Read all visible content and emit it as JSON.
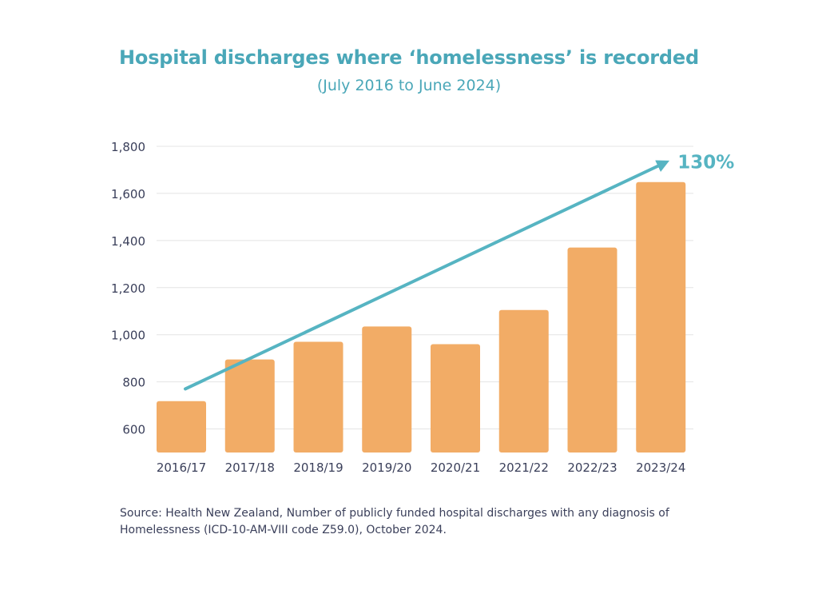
{
  "title": "Hospital discharges where ‘homelessness’ is recorded",
  "subtitle": "(July 2016 to June 2024)",
  "colors": {
    "title": "#4aa7b8",
    "bar": "#f2ac66",
    "arrow": "#56b4c2",
    "axis_text": "#3a3f5a",
    "grid": "#e4e4e4"
  },
  "chart_data": {
    "type": "bar",
    "categories": [
      "2016/17",
      "2017/18",
      "2018/19",
      "2019/20",
      "2020/21",
      "2021/22",
      "2022/23",
      "2023/24"
    ],
    "values": [
      718,
      895,
      970,
      1035,
      960,
      1105,
      1370,
      1648
    ],
    "ylim": [
      500,
      1800
    ],
    "yticks": [
      600,
      800,
      1000,
      1200,
      1400,
      1600,
      1800
    ],
    "ytick_labels": [
      "600",
      "800",
      "1,000",
      "1,200",
      "1,400",
      "1,600",
      "1,800"
    ],
    "grid": true,
    "annotation": {
      "text": "130%",
      "type": "trend-arrow",
      "from": {
        "category": "2016/17",
        "value": 770
      },
      "to": {
        "category": "2023/24",
        "value": 1730
      }
    }
  },
  "source_lines": [
    "Source: Health New Zealand, Number of publicly funded hospital discharges with any diagnosis of",
    "Homelessness (ICD-10-AM-VIII code Z59.0), October 2024."
  ]
}
